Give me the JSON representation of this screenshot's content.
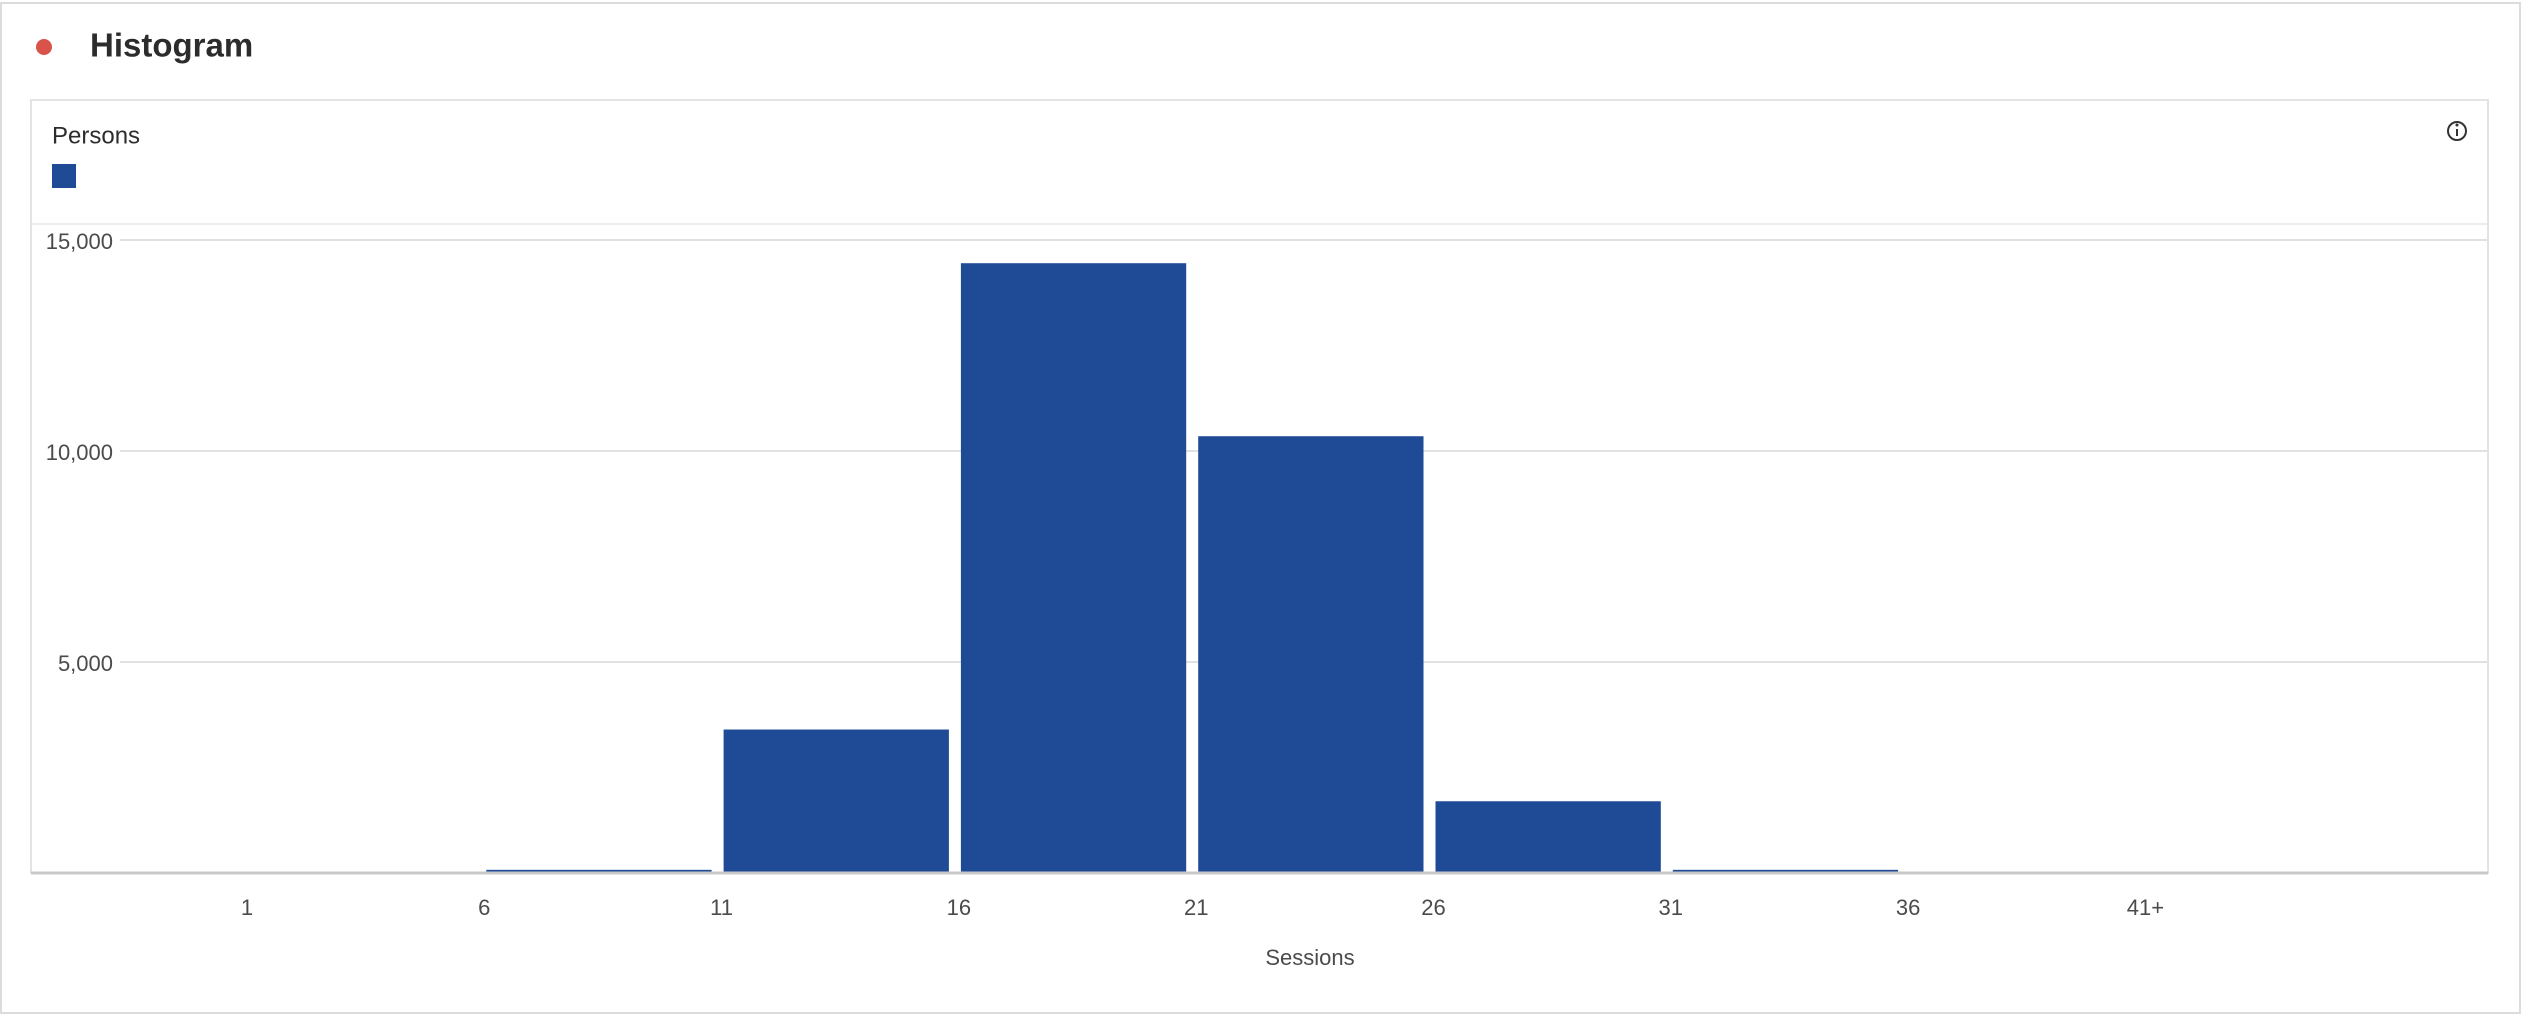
{
  "chart_data": {
    "type": "bar",
    "title": "Histogram",
    "x_label": "Sessions",
    "categories": [
      "1",
      "6",
      "11",
      "16",
      "21",
      "26",
      "31",
      "36",
      "41+"
    ],
    "series": [
      {
        "name": "Persons",
        "color": "#1e4a96",
        "values": [
          30,
          75,
          3400,
          14450,
          10350,
          1700,
          75,
          30,
          30
        ]
      }
    ],
    "ylim": [
      0,
      15000
    ],
    "yticks": [
      {
        "value": 5000,
        "label": "5,000"
      },
      {
        "value": 10000,
        "label": "10,000"
      },
      {
        "value": 15000,
        "label": "15,000"
      }
    ],
    "grid": true
  }
}
